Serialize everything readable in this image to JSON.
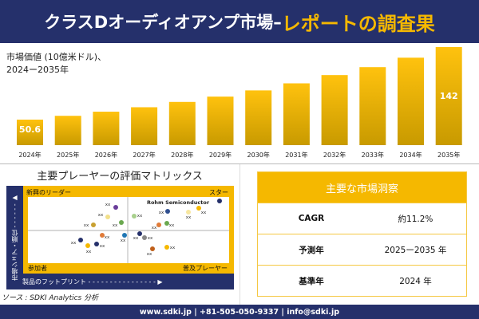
{
  "header": {
    "title_main": "クラスDオーディオアンプ市場–",
    "title_highlight": "レポートの調査果"
  },
  "chart_data": {
    "type": "bar",
    "title": "市場価値（10億米ドル）、2024ー2035年",
    "subtitle_line1": "市場価値 (10億米ドル)、",
    "subtitle_line2": "2024ー2035年",
    "categories": [
      "2024年",
      "2025年",
      "2026年",
      "2027年",
      "2028年",
      "2029年",
      "2030年",
      "2031年",
      "2032年",
      "2033年",
      "2034年",
      "2035年"
    ],
    "values": [
      50.6,
      55.4,
      60.6,
      66.2,
      72.9,
      79.6,
      87.4,
      96.3,
      106.7,
      116.7,
      128.6,
      142
    ],
    "data_labels": {
      "first": "50.6",
      "last": "142"
    },
    "colors": {
      "bar_dark": "#c89a00",
      "bar_light": "#ffc20e"
    }
  },
  "matrix": {
    "title": "主要プレーヤーの評価マトリックス",
    "quadrants": {
      "top_left": "新興のリーダー",
      "top_right": "スター",
      "bottom_left": "参加者",
      "bottom_right": "普及プレーヤー"
    },
    "y_axis": "市場シェア・順位 - - - - - - ▶",
    "x_axis": "製品のフットプリント - - - - - - - - - - - - - - - - ▶",
    "highlight_player": "Rohm Semiconductor",
    "point_label": "xx"
  },
  "insights": {
    "title": "主要な市場洞察",
    "rows": [
      {
        "label": "CAGR",
        "value": "約11.2%"
      },
      {
        "label": "予測年",
        "value": "2025ー2035 年"
      },
      {
        "label": "基準年",
        "value": "2024 年"
      }
    ]
  },
  "source": "ソース : SDKI Analytics 分析",
  "footer": "www.sdki.jp | +81-505-050-9337 | info@sdki.jp"
}
